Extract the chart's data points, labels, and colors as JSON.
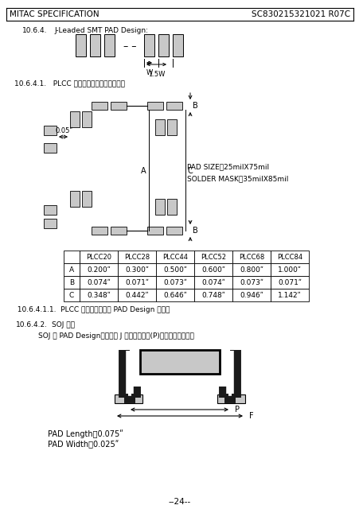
{
  "title_left": "MITAC SPECIFICATION",
  "title_right": "SC830215321021 R07C",
  "section_1_num": "10.6.4.",
  "section_1_txt": "J-Leaded SMT PAD Design:",
  "section_2": "10.6.4.1.   PLCC 包裝（四邂腳數相同者）：",
  "label_A": "A",
  "label_B": "B",
  "label_C": "C",
  "pad_size_text": "PAD SIZE：25milX75mil",
  "solder_mask_text": "SOLDER MASK：35milX85mil",
  "dim_005": "0.05ʺ",
  "W_label": "W",
  "W15_label": "1.5W",
  "table_headers": [
    "",
    "PLCC20",
    "PLCC28",
    "PLCC44",
    "PLCC52",
    "PLCC68",
    "PLCC84"
  ],
  "table_row_A": [
    "A",
    "0.200ʺ",
    "0.300ʺ",
    "0.500ʺ",
    "0.600ʺ",
    "0.800ʺ",
    "1.000ʺ"
  ],
  "table_row_B": [
    "B",
    "0.074ʺ",
    "0.071ʺ",
    "0.073ʺ",
    "0.074ʺ",
    "0.073ʺ",
    "0.071ʺ"
  ],
  "table_row_C": [
    "C",
    "0.348ʺ",
    "0.442ʺ",
    "0.646ʺ",
    "0.748ʺ",
    "0.946ʺ",
    "1.142ʺ"
  ],
  "note_1": "  10.6.4.1.1.  PLCC 於無鱛製程時之 PAD Design 相同。",
  "section_3_num": "10.6.4.2.",
  "section_3_txt": "SOJ 包裝",
  "soj_desc": "SOJ 之 PAD Design：以兩排 J 形頂端之距離(P)作為設計之依據。",
  "pad_length_text": "PAD Length＝0.075ʺ",
  "pad_width_text": "PAD Width＝0.025ʺ",
  "P_label": "P",
  "F_label": "F",
  "page_num": "--24--",
  "bg_color": "#ffffff",
  "text_color": "#000000",
  "gray_fill": "#c8c8c8",
  "dark_fill": "#1a1a1a"
}
